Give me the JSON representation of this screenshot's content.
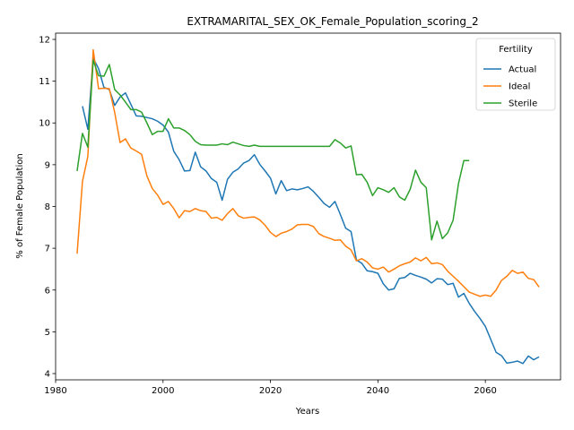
{
  "chart_data": {
    "type": "line",
    "title": "EXTRAMARITAL_SEX_OK_Female_Population_scoring_2",
    "xlabel": "Years",
    "ylabel": "% of Female Population",
    "xlim": [
      1980,
      2074
    ],
    "ylim": [
      3.85,
      12.15
    ],
    "xticks": [
      1980,
      2000,
      2020,
      2040,
      2060
    ],
    "yticks": [
      4,
      5,
      6,
      7,
      8,
      9,
      10,
      11,
      12
    ],
    "grid": false,
    "legend": {
      "title": "Fertility",
      "position": "top-right"
    },
    "series": [
      {
        "name": "Actual",
        "color": "#1f77b4",
        "x": [
          1985,
          1986,
          1987,
          1988,
          1989,
          1990,
          1991,
          1992,
          1993,
          1994,
          1995,
          1996,
          1997,
          1998,
          1999,
          2000,
          2001,
          2002,
          2003,
          2004,
          2005,
          2006,
          2007,
          2008,
          2009,
          2010,
          2011,
          2012,
          2013,
          2014,
          2015,
          2016,
          2017,
          2018,
          2019,
          2020,
          2021,
          2022,
          2023,
          2024,
          2025,
          2026,
          2027,
          2028,
          2029,
          2030,
          2031,
          2032,
          2033,
          2034,
          2035,
          2036,
          2037,
          2038,
          2039,
          2040,
          2041,
          2042,
          2043,
          2044,
          2045,
          2046,
          2047,
          2048,
          2049,
          2050,
          2051,
          2052,
          2053,
          2054,
          2055,
          2056,
          2057,
          2058,
          2059,
          2060,
          2061,
          2062,
          2063,
          2064,
          2065,
          2066,
          2067,
          2068,
          2069,
          2070
        ],
        "y": [
          10.4,
          9.85,
          11.55,
          11.3,
          10.85,
          10.8,
          10.42,
          10.62,
          10.72,
          10.45,
          10.17,
          10.16,
          10.13,
          10.1,
          10.04,
          9.95,
          9.78,
          9.32,
          9.12,
          8.85,
          8.86,
          9.3,
          8.95,
          8.85,
          8.67,
          8.58,
          8.15,
          8.65,
          8.82,
          8.9,
          9.04,
          9.1,
          9.24,
          9.01,
          8.85,
          8.68,
          8.3,
          8.62,
          8.38,
          8.42,
          8.4,
          8.43,
          8.47,
          8.36,
          8.22,
          8.07,
          7.98,
          8.12,
          7.81,
          7.48,
          7.4,
          6.72,
          6.64,
          6.46,
          6.44,
          6.4,
          6.15,
          6.0,
          6.03,
          6.28,
          6.3,
          6.4,
          6.35,
          6.31,
          6.26,
          6.17,
          6.27,
          6.26,
          6.13,
          6.16,
          5.83,
          5.92,
          5.68,
          5.49,
          5.32,
          5.13,
          4.82,
          4.51,
          4.43,
          4.25,
          4.27,
          4.3,
          4.24,
          4.42,
          4.33,
          4.4
        ]
      },
      {
        "name": "Ideal",
        "color": "#ff7f0e",
        "x": [
          1984,
          1985,
          1986,
          1987,
          1988,
          1989,
          1990,
          1991,
          1992,
          1993,
          1994,
          1995,
          1996,
          1997,
          1998,
          1999,
          2000,
          2001,
          2002,
          2003,
          2004,
          2005,
          2006,
          2007,
          2008,
          2009,
          2010,
          2011,
          2012,
          2013,
          2014,
          2015,
          2016,
          2017,
          2018,
          2019,
          2020,
          2021,
          2022,
          2023,
          2024,
          2025,
          2026,
          2027,
          2028,
          2029,
          2030,
          2031,
          2032,
          2033,
          2034,
          2035,
          2036,
          2037,
          2038,
          2039,
          2040,
          2041,
          2042,
          2043,
          2044,
          2045,
          2046,
          2047,
          2048,
          2049,
          2050,
          2051,
          2052,
          2053,
          2054,
          2055,
          2056,
          2057,
          2058,
          2059,
          2060,
          2061,
          2062,
          2063,
          2064,
          2065,
          2066,
          2067,
          2068,
          2069,
          2070
        ],
        "y": [
          6.87,
          8.6,
          9.2,
          11.75,
          10.82,
          10.83,
          10.82,
          10.25,
          9.53,
          9.62,
          9.4,
          9.33,
          9.25,
          8.73,
          8.43,
          8.27,
          8.05,
          8.12,
          7.95,
          7.73,
          7.9,
          7.88,
          7.95,
          7.9,
          7.88,
          7.72,
          7.74,
          7.67,
          7.83,
          7.95,
          7.78,
          7.72,
          7.74,
          7.75,
          7.68,
          7.55,
          7.38,
          7.28,
          7.36,
          7.4,
          7.46,
          7.56,
          7.57,
          7.57,
          7.52,
          7.35,
          7.28,
          7.24,
          7.19,
          7.2,
          7.05,
          6.96,
          6.7,
          6.75,
          6.67,
          6.53,
          6.5,
          6.55,
          6.43,
          6.5,
          6.58,
          6.63,
          6.67,
          6.77,
          6.7,
          6.78,
          6.63,
          6.65,
          6.61,
          6.45,
          6.33,
          6.21,
          6.08,
          5.95,
          5.9,
          5.85,
          5.88,
          5.85,
          6.0,
          6.23,
          6.33,
          6.47,
          6.4,
          6.43,
          6.28,
          6.25,
          6.07
        ]
      },
      {
        "name": "Sterile",
        "color": "#2ca02c",
        "x": [
          1984,
          1985,
          1986,
          1987,
          1988,
          1989,
          1990,
          1991,
          1992,
          1993,
          1994,
          1995,
          1996,
          1997,
          1998,
          1999,
          2000,
          2001,
          2002,
          2003,
          2004,
          2005,
          2006,
          2007,
          2008,
          2009,
          2010,
          2011,
          2012,
          2013,
          2014,
          2015,
          2016,
          2017,
          2018,
          2019,
          2020,
          2021,
          2022,
          2023,
          2024,
          2025,
          2026,
          2027,
          2028,
          2029,
          2030,
          2031,
          2032,
          2033,
          2034,
          2035,
          2036,
          2037,
          2038,
          2039,
          2040,
          2041,
          2042,
          2043,
          2044,
          2045,
          2046,
          2047,
          2048,
          2049,
          2050,
          2051,
          2052,
          2053,
          2054,
          2055,
          2056,
          2057
        ],
        "y": [
          8.85,
          9.75,
          9.42,
          11.5,
          11.13,
          11.12,
          11.4,
          10.8,
          10.67,
          10.5,
          10.32,
          10.32,
          10.26,
          10.0,
          9.72,
          9.8,
          9.8,
          10.1,
          9.88,
          9.88,
          9.82,
          9.72,
          9.56,
          9.48,
          9.47,
          9.47,
          9.47,
          9.5,
          9.48,
          9.54,
          9.5,
          9.46,
          9.44,
          9.47,
          9.44,
          9.44,
          9.44,
          9.44,
          9.44,
          9.44,
          9.44,
          9.44,
          9.44,
          9.44,
          9.44,
          9.44,
          9.44,
          9.44,
          9.6,
          9.52,
          9.4,
          9.45,
          8.76,
          8.77,
          8.58,
          8.26,
          8.45,
          8.4,
          8.34,
          8.45,
          8.23,
          8.15,
          8.41,
          8.87,
          8.58,
          8.45,
          7.2,
          7.65,
          7.23,
          7.37,
          7.67,
          8.55,
          9.1,
          9.1
        ]
      }
    ]
  }
}
